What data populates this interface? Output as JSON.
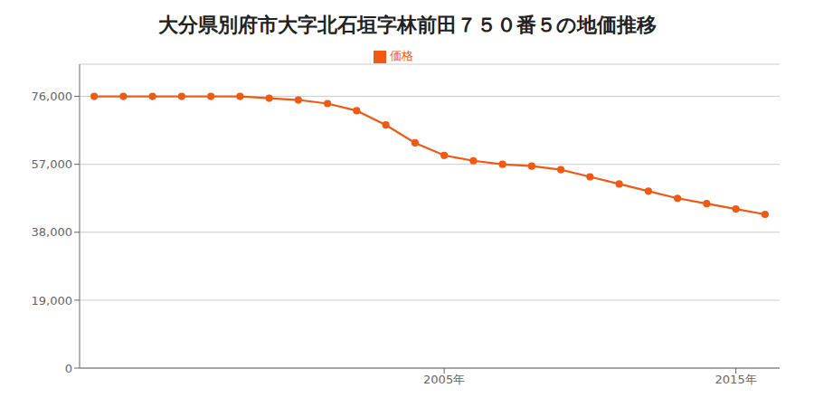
{
  "chart_data": {
    "type": "line",
    "title": "大分県別府市大字北石垣字林前田７５０番５の地価推移",
    "x": [
      1993,
      1994,
      1995,
      1996,
      1997,
      1998,
      1999,
      2000,
      2001,
      2002,
      2003,
      2004,
      2005,
      2006,
      2007,
      2008,
      2009,
      2010,
      2011,
      2012,
      2013,
      2014,
      2015,
      2016
    ],
    "series": [
      {
        "name": "価格",
        "color": "#f05a14",
        "marker": "circle",
        "values": [
          76000,
          76000,
          76000,
          76000,
          76000,
          76000,
          75500,
          75000,
          74000,
          72000,
          68000,
          63000,
          59500,
          58000,
          57000,
          56500,
          55500,
          53500,
          51500,
          49500,
          47500,
          46000,
          44500,
          43000
        ]
      }
    ],
    "xlim": [
      1992.5,
      2016.5
    ],
    "xticks": [
      {
        "value": 2005,
        "label": "2005年"
      },
      {
        "value": 2015,
        "label": "2015年"
      }
    ],
    "ylim": [
      0,
      85000
    ],
    "yticks": [
      0,
      {
        "value": 19000,
        "label": "19,000"
      },
      {
        "value": 38000,
        "label": "38,000"
      },
      {
        "value": 57000,
        "label": "57,000"
      },
      {
        "value": 76000,
        "label": "76,000"
      }
    ],
    "grid": "y",
    "legend": "top"
  }
}
